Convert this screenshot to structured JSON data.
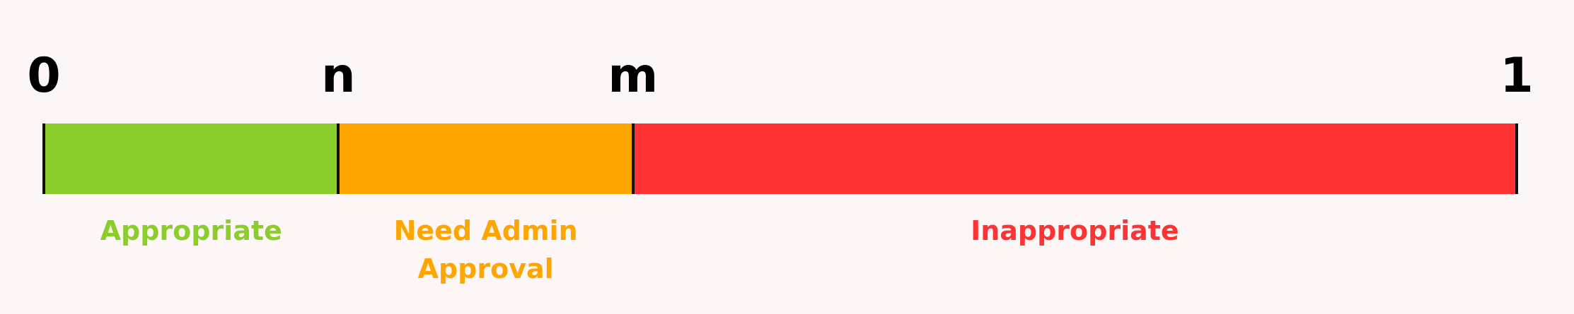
{
  "scale": {
    "ticks": [
      {
        "label": "0",
        "value": 0
      },
      {
        "label": "n",
        "value": 0.2
      },
      {
        "label": "m",
        "value": 0.4
      },
      {
        "label": "1",
        "value": 1
      }
    ]
  },
  "zones": [
    {
      "key": "appropriate",
      "from": 0,
      "to": 0.2,
      "color": "#8bcd2b",
      "label_lines": [
        "Appropriate"
      ]
    },
    {
      "key": "need-admin-approval",
      "from": 0.2,
      "to": 0.4,
      "color": "#ffa500",
      "label_lines": [
        "Need Admin",
        "Approval"
      ]
    },
    {
      "key": "inappropriate",
      "from": 0.4,
      "to": 1,
      "color": "#ff3333",
      "label_lines": [
        "Inappropriate"
      ]
    }
  ]
}
